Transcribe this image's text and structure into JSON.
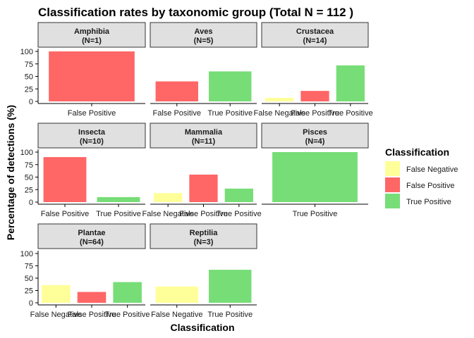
{
  "chart_data": {
    "type": "bar",
    "title": "Classification rates by taxonomic group (Total N = 112 )",
    "xlabel": "Classification",
    "ylabel": "Percentage of detections (%)",
    "ylim": [
      0,
      100
    ],
    "yticks": [
      "0",
      "25",
      "50",
      "75",
      "100"
    ],
    "legend": {
      "title": "Classification",
      "placement": "right",
      "entries": [
        {
          "name": "False Negative",
          "color": "#FFFF99"
        },
        {
          "name": "False Positive",
          "color": "#FF6666"
        },
        {
          "name": "True Positive",
          "color": "#77DD77"
        }
      ]
    },
    "facets": [
      {
        "group": "Amphibia",
        "n_label": "(N=1)",
        "categories": [
          "False Positive"
        ],
        "values": [
          100
        ]
      },
      {
        "group": "Aves",
        "n_label": "(N=5)",
        "categories": [
          "False Positive",
          "True Positive"
        ],
        "values": [
          40,
          60
        ]
      },
      {
        "group": "Crustacea",
        "n_label": "(N=14)",
        "categories": [
          "False Negative",
          "False Positive",
          "True Positive"
        ],
        "values": [
          7,
          21,
          72
        ]
      },
      {
        "group": "Insecta",
        "n_label": "(N=10)",
        "categories": [
          "False Positive",
          "True Positive"
        ],
        "values": [
          90,
          10
        ]
      },
      {
        "group": "Mammalia",
        "n_label": "(N=11)",
        "categories": [
          "False Negative",
          "False Positive",
          "True Positive"
        ],
        "values": [
          18,
          55,
          27
        ]
      },
      {
        "group": "Pisces",
        "n_label": "(N=4)",
        "categories": [
          "True Positive"
        ],
        "values": [
          100
        ]
      },
      {
        "group": "Plantae",
        "n_label": "(N=64)",
        "categories": [
          "False Negative",
          "False Positive",
          "True Positive"
        ],
        "values": [
          36,
          22,
          42
        ]
      },
      {
        "group": "Reptilia",
        "n_label": "(N=3)",
        "categories": [
          "False Negative",
          "True Positive"
        ],
        "values": [
          33,
          67
        ]
      }
    ]
  }
}
